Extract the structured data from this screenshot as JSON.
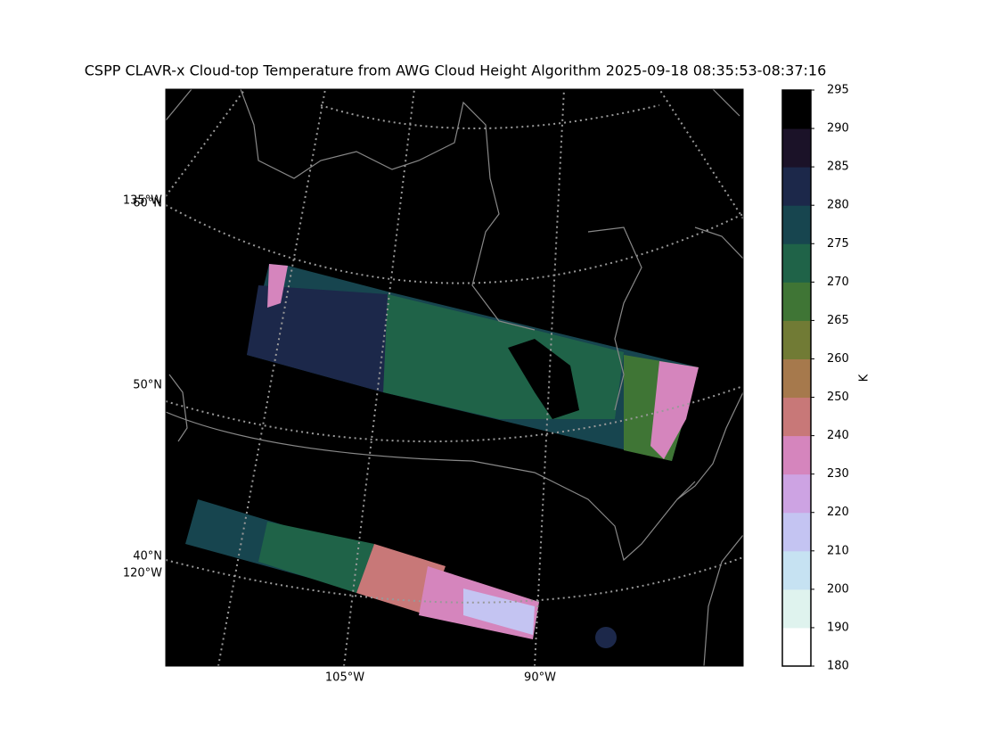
{
  "title": "CSPP CLAVR-x Cloud-top Temperature from AWG Cloud Height Algorithm 2025-09-18 08:35:53-08:37:16",
  "map": {
    "lat_labels": [
      "60°N",
      "50°N",
      "40°N"
    ],
    "lon_labels": [
      "135°W",
      "120°W",
      "105°W",
      "90°W"
    ]
  },
  "colorbar": {
    "label": "K",
    "ticks": [
      180,
      190,
      200,
      210,
      220,
      230,
      240,
      250,
      260,
      265,
      270,
      275,
      280,
      285,
      290,
      295
    ],
    "colors": [
      "#ffffff",
      "#dff3ee",
      "#c6e2f2",
      "#c4c4f2",
      "#cda3e3",
      "#d585bd",
      "#c87878",
      "#a6794c",
      "#717b35",
      "#3f7535",
      "#1f6348",
      "#17454f",
      "#1c284a",
      "#1b1228",
      "#000000"
    ]
  }
}
